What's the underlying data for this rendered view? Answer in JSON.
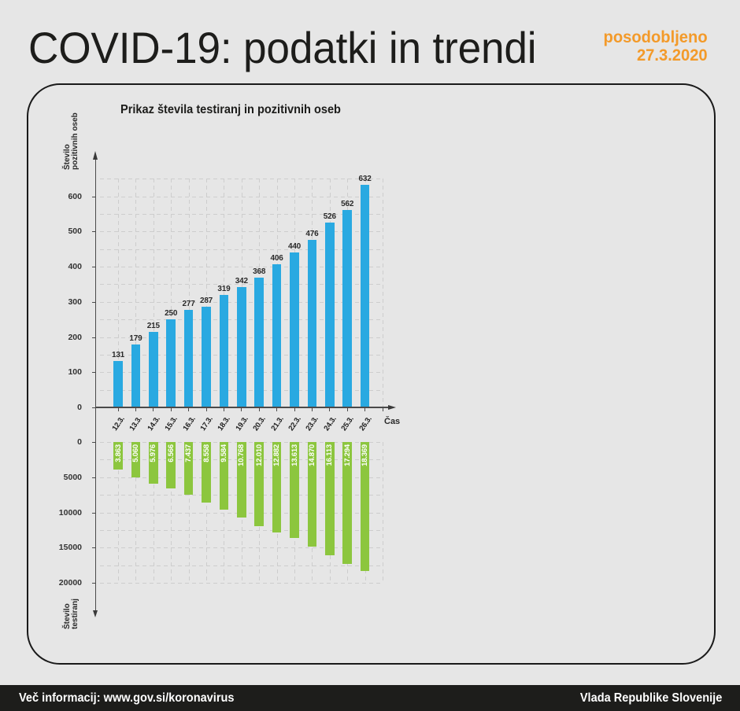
{
  "header": {
    "title": "COVID-19: podatki in trendi",
    "updated_label": "posodobljeno",
    "updated_date": "27.3.2020"
  },
  "chart": {
    "title": "Prikaz števila testiranj in pozitivnih oseb",
    "y_top_label": [
      "Število",
      "pozitivnih oseb"
    ],
    "y_bottom_label": [
      "Število",
      "testiranj"
    ],
    "x_label": "Čas"
  },
  "footer": {
    "info": "Več informacij: www.gov.si/koronavirus",
    "org": "Vlada Republike Slovenije"
  },
  "colors": {
    "background": "#e6e6e6",
    "positive_bars": "#29a9e1",
    "test_bars": "#8cc63e",
    "accent": "#f39a2a",
    "footer_bg": "#1d1d1b",
    "text": "#1d1d1b"
  },
  "chart_data": {
    "type": "bar",
    "title": "Prikaz števila testiranj in pozitivnih oseb",
    "xlabel": "Čas",
    "categories": [
      "12.3.",
      "13.3.",
      "14.3.",
      "15.3.",
      "16.3.",
      "17.3.",
      "18.3.",
      "19.3.",
      "20.3.",
      "21.3.",
      "22.3.",
      "23.3.",
      "24.3.",
      "25.3.",
      "26.3."
    ],
    "series": [
      {
        "name": "Število pozitivnih oseb",
        "direction": "up",
        "values": [
          131,
          179,
          215,
          250,
          277,
          287,
          319,
          342,
          368,
          406,
          440,
          476,
          526,
          562,
          632
        ],
        "labels": [
          "131",
          "179",
          "215",
          "250",
          "277",
          "287",
          "319",
          "342",
          "368",
          "406",
          "440",
          "476",
          "526",
          "562",
          "632"
        ]
      },
      {
        "name": "Število testiranj",
        "direction": "down",
        "values": [
          3863,
          5060,
          5976,
          6566,
          7437,
          8558,
          9584,
          10768,
          12010,
          12882,
          13613,
          14870,
          16113,
          17294,
          18369
        ],
        "labels": [
          "3.863",
          "5.060",
          "5.976",
          "6.566",
          "7.437",
          "8.558",
          "9.584",
          "10.768",
          "12.010",
          "12.882",
          "13.613",
          "14.870",
          "16.113",
          "17.294",
          "18.369"
        ]
      }
    ],
    "axes": [
      {
        "label": "Število pozitivnih oseb",
        "ylim": [
          0,
          650
        ],
        "ticks": [
          0,
          100,
          200,
          300,
          400,
          500,
          600
        ],
        "tick_labels": [
          "0",
          "100",
          "200",
          "300",
          "400",
          "500",
          "600"
        ]
      },
      {
        "label": "Število testiranj",
        "ylim": [
          0,
          20000
        ],
        "inverted": true,
        "ticks": [
          0,
          5000,
          10000,
          15000,
          20000
        ],
        "tick_labels": [
          "0",
          "5000",
          "10000",
          "15000",
          "20000"
        ]
      }
    ],
    "grid": true,
    "legend": null
  }
}
